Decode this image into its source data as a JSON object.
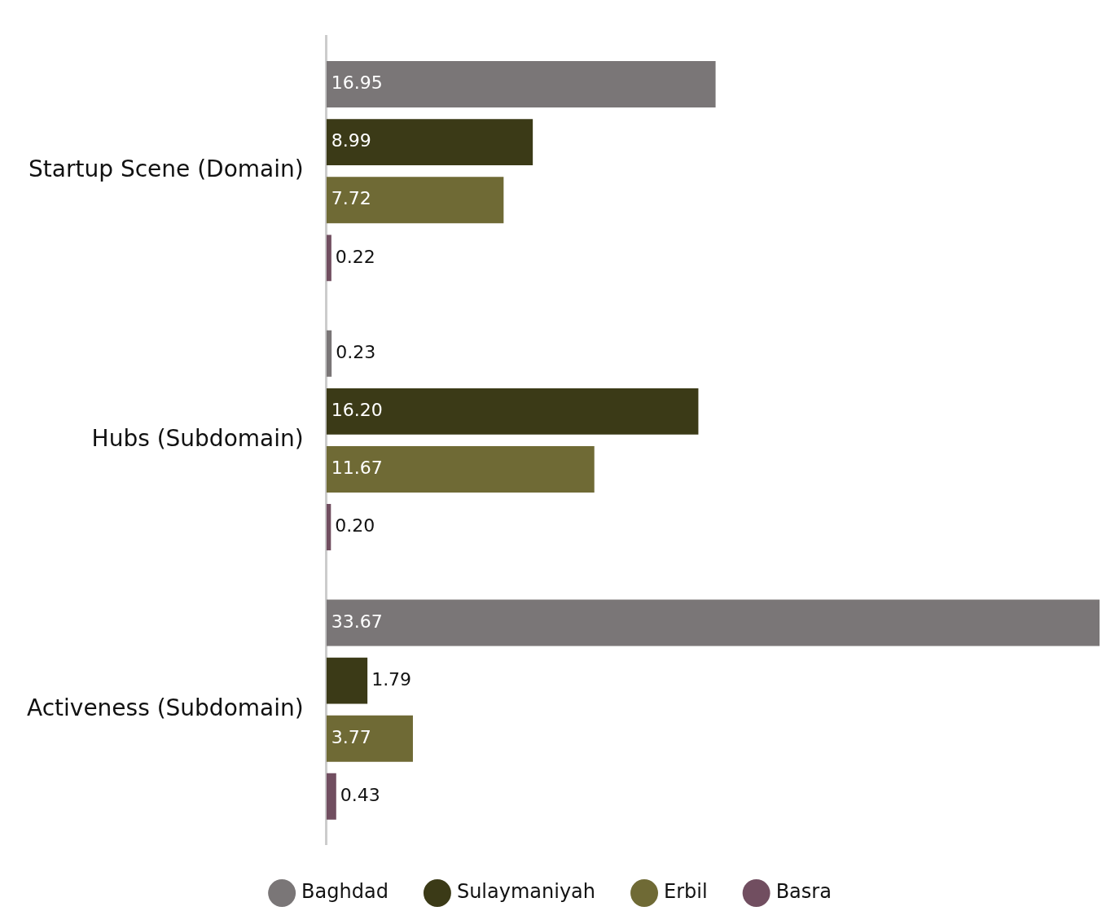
{
  "chart_data": {
    "type": "bar",
    "orientation": "horizontal",
    "legend": "bottom",
    "grid": false,
    "categories": [
      "Startup Scene (Domain)",
      "Hubs (Subdomain)",
      "Activeness (Subdomain)"
    ],
    "series": [
      {
        "name": "Baghdad",
        "color": "#7a7677",
        "values": [
          16.95,
          0.23,
          33.67
        ],
        "value_labels": [
          "16.95",
          "0.23",
          "33.67"
        ]
      },
      {
        "name": "Sulaymaniyah",
        "color": "#3b3a17",
        "values": [
          8.99,
          16.2,
          1.79
        ],
        "value_labels": [
          "8.99",
          "16.20",
          "1.79"
        ]
      },
      {
        "name": "Erbil",
        "color": "#6f6a35",
        "values": [
          7.72,
          11.67,
          3.77
        ],
        "value_labels": [
          "7.72",
          "11.67",
          "3.77"
        ]
      },
      {
        "name": "Basra",
        "color": "#714e60",
        "values": [
          0.22,
          0.2,
          0.43
        ],
        "value_labels": [
          "0.22",
          "0.20",
          "0.43"
        ]
      }
    ]
  }
}
